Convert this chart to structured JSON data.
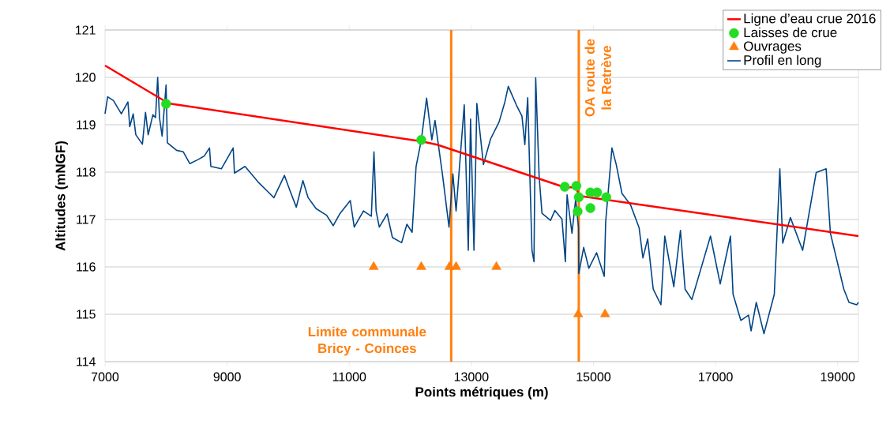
{
  "chart_data": {
    "type": "line",
    "xlabel": "Points métriques (m)",
    "ylabel": "Altitudes (mNGF)",
    "xlim": [
      7000,
      19340
    ],
    "ylim": [
      114,
      121
    ],
    "xticks": [
      7000,
      9000,
      11000,
      13000,
      15000,
      17000,
      19000
    ],
    "yticks": [
      114,
      115,
      116,
      117,
      118,
      119,
      120,
      121
    ],
    "grid": "y",
    "legend": "top right",
    "series": [
      {
        "name": "Ligne d’eau crue 2016",
        "color": "#ff0000",
        "x": [
          7000,
          8043,
          12180,
          12440,
          14530,
          14720,
          14760,
          19340
        ],
        "values": [
          120.25,
          119.45,
          118.65,
          118.58,
          117.68,
          117.68,
          117.5,
          116.65
        ]
      },
      {
        "name": "Laisses de crue",
        "type": "scatter",
        "marker": "circle",
        "color": "#22dd22",
        "x": [
          8000,
          12180,
          14530,
          14720,
          14760,
          14740,
          14950,
          15060,
          15210,
          14950
        ],
        "values": [
          119.44,
          118.68,
          117.69,
          117.71,
          117.47,
          117.17,
          117.57,
          117.57,
          117.47,
          117.24
        ]
      },
      {
        "name": "Ouvrages",
        "type": "scatter",
        "marker": "triangle",
        "color": "#ff7f0e",
        "x": [
          11400,
          12180,
          12640,
          12750,
          13410,
          14750,
          15190
        ],
        "values": [
          116,
          116,
          116,
          116,
          116,
          115,
          115
        ]
      },
      {
        "name": "Profil en long",
        "color": "#004586",
        "x": [
          7000,
          7043,
          7138,
          7203,
          7267,
          7375,
          7405,
          7461,
          7504,
          7612,
          7663,
          7707,
          7784,
          7827,
          7862,
          7892,
          7935,
          8000,
          8021,
          8172,
          8280,
          8388,
          8517,
          8625,
          8711,
          8733,
          8905,
          9099,
          9120,
          9293,
          9508,
          9680,
          9766,
          9939,
          10026,
          10133,
          10241,
          10327,
          10457,
          10629,
          10737,
          10845,
          11017,
          11082,
          11233,
          11362,
          11405,
          11440,
          11492,
          11621,
          11707,
          11858,
          11944,
          12030,
          12095,
          12181,
          12267,
          12353,
          12405,
          12526,
          12634,
          12698,
          12750,
          12884,
          12950,
          12987,
          13043,
          13090,
          13198,
          13315,
          13455,
          13549,
          13605,
          13736,
          13829,
          13876,
          13923,
          13993,
          14026,
          14054,
          14110,
          14157,
          14297,
          14367,
          14484,
          14540,
          14568,
          14648,
          14709,
          14755,
          14760,
          14840,
          14924,
          15051,
          15177,
          15200,
          15303,
          15373,
          15467,
          15607,
          15747,
          15810,
          15888,
          15979,
          16105,
          16168,
          16316,
          16425,
          16501,
          16612,
          16917,
          17076,
          17244,
          17287,
          17414,
          17540,
          17582,
          17667,
          17793,
          17962,
          18053,
          18100,
          18226,
          18426,
          18648,
          18811,
          18881,
          19101,
          19186,
          19312,
          19340
        ],
        "values": [
          119.23,
          119.59,
          119.51,
          119.37,
          119.23,
          119.48,
          118.96,
          119.23,
          118.79,
          118.59,
          119.26,
          118.79,
          119.21,
          119.15,
          120.0,
          119.15,
          118.76,
          119.84,
          118.62,
          118.46,
          118.43,
          118.18,
          118.26,
          118.34,
          118.51,
          118.12,
          118.07,
          118.51,
          117.98,
          118.12,
          117.79,
          117.57,
          117.46,
          117.93,
          117.62,
          117.26,
          117.82,
          117.46,
          117.23,
          117.09,
          116.87,
          117.12,
          117.4,
          116.84,
          117.18,
          117.07,
          118.43,
          117.18,
          116.84,
          117.12,
          116.62,
          116.51,
          116.9,
          116.73,
          118.12,
          118.68,
          119.56,
          118.68,
          119.09,
          117.96,
          116.84,
          117.96,
          117.18,
          119.42,
          116.35,
          119.12,
          116.35,
          119.45,
          118.16,
          118.7,
          119.06,
          119.48,
          119.81,
          119.42,
          119.18,
          118.58,
          119.57,
          116.35,
          116.11,
          119.99,
          117.92,
          117.13,
          116.98,
          117.19,
          117.01,
          116.11,
          117.52,
          116.71,
          117.43,
          116.83,
          115.86,
          116.41,
          115.97,
          116.3,
          115.8,
          116.95,
          118.51,
          118.16,
          117.55,
          117.31,
          116.83,
          116.19,
          116.59,
          115.53,
          115.2,
          116.65,
          115.58,
          116.77,
          115.53,
          115.31,
          116.65,
          115.64,
          116.65,
          115.42,
          114.87,
          114.98,
          114.65,
          115.25,
          114.59,
          115.42,
          118.07,
          116.5,
          117.04,
          116.35,
          117.99,
          118.07,
          116.71,
          115.53,
          115.25,
          115.2,
          115.25
        ]
      }
    ],
    "ref_lines": [
      {
        "axis": "x",
        "value": 12670,
        "label": "Limite communale Bricy - Coinces",
        "color": "#ff7f0e"
      },
      {
        "axis": "x",
        "value": 14760,
        "label": "OA route de la Retrève",
        "color": "#ff7f0e"
      }
    ]
  }
}
